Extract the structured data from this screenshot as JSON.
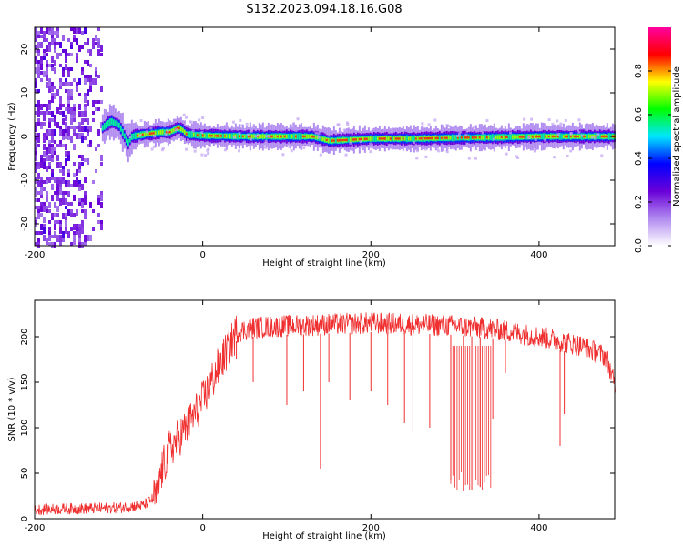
{
  "title": "S132.2023.094.18.16.G08",
  "chart_data": [
    {
      "type": "heatmap",
      "xlabel": "Height of straight line (km)",
      "ylabel": "Frequency (Hz)",
      "xlim": [
        -200,
        490
      ],
      "ylim": [
        -25,
        25
      ],
      "x_ticks": [
        -200,
        0,
        200,
        400
      ],
      "y_ticks": [
        -20,
        -10,
        0,
        10,
        20
      ],
      "colorbar": {
        "label": "Normalized spectral amplitude",
        "range": [
          0,
          1
        ],
        "ticks": [
          0.0,
          0.2,
          0.4,
          0.6,
          0.8
        ],
        "tick_labels": [
          "0.0",
          "0.2",
          "0.4",
          "0.6",
          "0.8"
        ],
        "colors": [
          "#ffffff",
          "#b089f0",
          "#6a00d8",
          "#0000ff",
          "#00e6ff",
          "#00ff00",
          "#ffff00",
          "#ff0000",
          "#ff00a0"
        ]
      },
      "noise_region": {
        "x_range": [
          -200,
          -120
        ],
        "y_range": [
          -25,
          25
        ]
      },
      "signal_trace": {
        "x": [
          -120,
          -110,
          -100,
          -95,
          -90,
          -85,
          -70,
          -50,
          -40,
          -30,
          -25,
          -20,
          0,
          50,
          100,
          130,
          140,
          150,
          200,
          250,
          300,
          350,
          400,
          450,
          490
        ],
        "y": [
          2.0,
          3.5,
          2.5,
          0.5,
          -1.5,
          0.0,
          0.5,
          1.0,
          1.0,
          2.0,
          1.5,
          0.5,
          0.2,
          0.0,
          0.0,
          0.0,
          -0.5,
          -1.0,
          -0.5,
          -0.5,
          -0.3,
          -0.2,
          0.0,
          0.0,
          0.0
        ]
      }
    },
    {
      "type": "line",
      "xlabel": "Height of straight line (km)",
      "ylabel": "SNR (10 * v/v)",
      "xlim": [
        -200,
        490
      ],
      "ylim": [
        0,
        240
      ],
      "x_ticks": [
        -200,
        0,
        200,
        400
      ],
      "y_ticks": [
        0,
        50,
        100,
        150,
        200
      ],
      "color": "#f03030",
      "envelope": {
        "x": [
          -200,
          -100,
          -70,
          -55,
          -50,
          -40,
          -20,
          0,
          20,
          40,
          60,
          100,
          200,
          300,
          350,
          400,
          450,
          480,
          490
        ],
        "y": [
          10,
          12,
          15,
          25,
          50,
          75,
          100,
          130,
          170,
          205,
          210,
          212,
          215,
          212,
          208,
          200,
          190,
          178,
          145
        ]
      },
      "dropouts": [
        {
          "x": 40,
          "y": 175
        },
        {
          "x": 60,
          "y": 150
        },
        {
          "x": 100,
          "y": 125
        },
        {
          "x": 120,
          "y": 140
        },
        {
          "x": 140,
          "y": 55
        },
        {
          "x": 150,
          "y": 150
        },
        {
          "x": 175,
          "y": 130
        },
        {
          "x": 200,
          "y": 140
        },
        {
          "x": 220,
          "y": 125
        },
        {
          "x": 240,
          "y": 105
        },
        {
          "x": 250,
          "y": 95
        },
        {
          "x": 270,
          "y": 100
        },
        {
          "x": 295,
          "y": 42
        },
        {
          "x": 310,
          "y": 30
        },
        {
          "x": 320,
          "y": 32
        },
        {
          "x": 330,
          "y": 35
        },
        {
          "x": 345,
          "y": 110
        },
        {
          "x": 360,
          "y": 160
        },
        {
          "x": 425,
          "y": 80
        },
        {
          "x": 430,
          "y": 115
        }
      ]
    }
  ]
}
